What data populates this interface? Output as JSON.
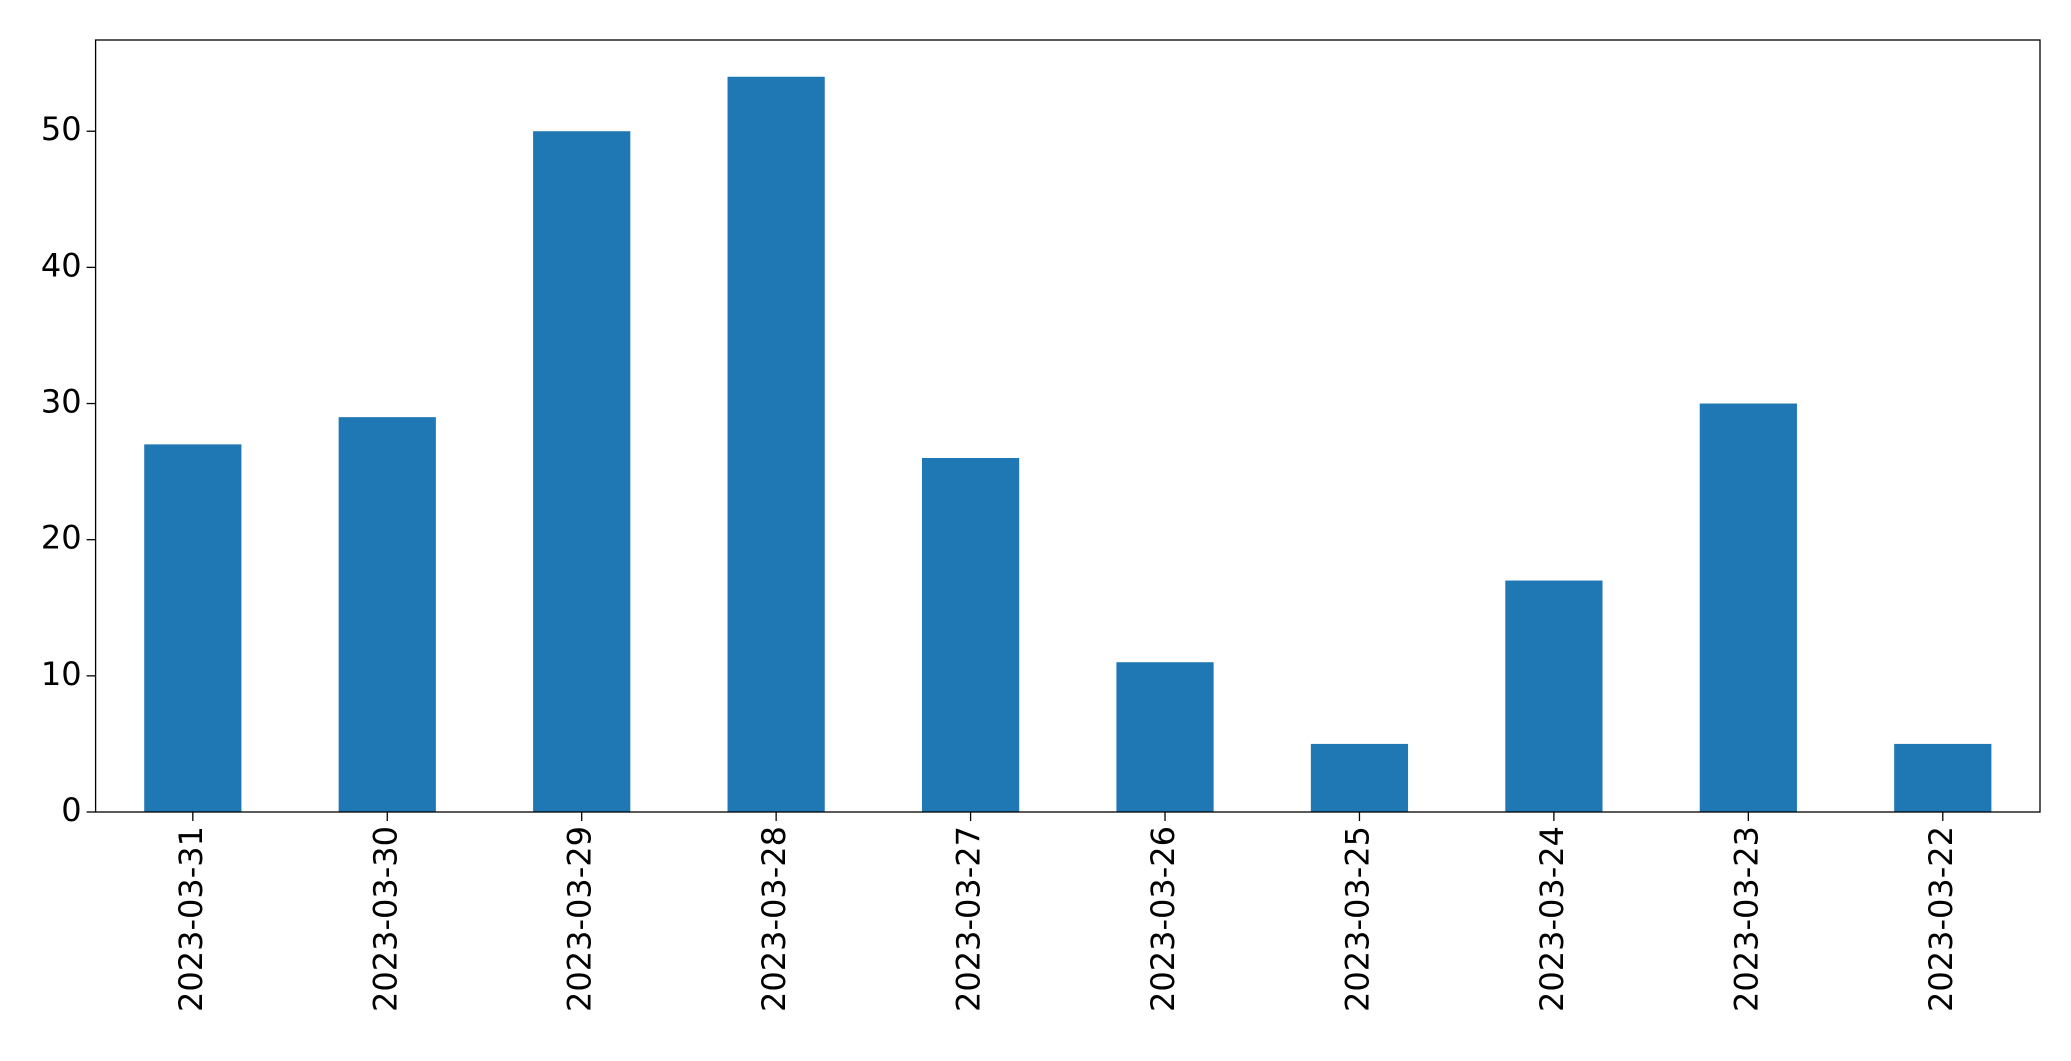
{
  "chart_data": {
    "type": "bar",
    "categories": [
      "2023-03-31",
      "2023-03-30",
      "2023-03-29",
      "2023-03-28",
      "2023-03-27",
      "2023-03-26",
      "2023-03-25",
      "2023-03-24",
      "2023-03-23",
      "2023-03-22"
    ],
    "values": [
      27,
      29,
      50,
      54,
      26,
      11,
      5,
      17,
      30,
      5
    ],
    "color": "#1f77b4",
    "ylim": [
      0,
      56.7
    ],
    "yticks": [
      0,
      10,
      20,
      30,
      40,
      50
    ],
    "grid": false
  }
}
